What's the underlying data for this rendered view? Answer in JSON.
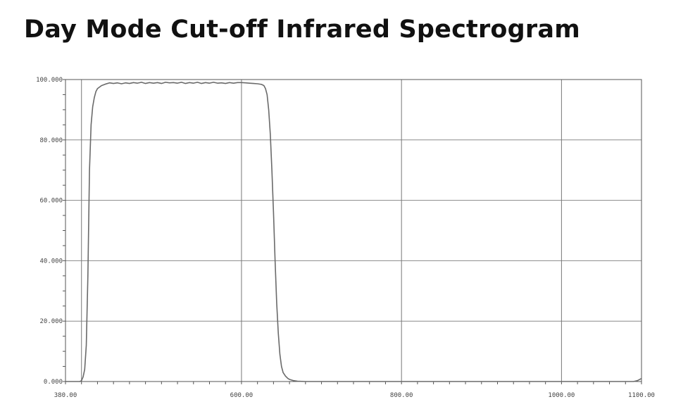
{
  "title": "Day Mode Cut-off Infrared Spectrogram",
  "chart_data": {
    "type": "line",
    "title": "Day Mode Cut-off Infrared Spectrogram",
    "xlabel": "",
    "ylabel": "",
    "xlim": [
      380,
      1100
    ],
    "ylim": [
      0,
      100
    ],
    "grid": true,
    "x_ticks": [
      380,
      600,
      800,
      1000,
      1100
    ],
    "x_tick_labels": [
      "380.00",
      "600.00",
      "800.00",
      "1000.00",
      "1100.00"
    ],
    "y_ticks": [
      0,
      20,
      40,
      60,
      80,
      100
    ],
    "y_tick_labels": [
      "0.000",
      "20.000",
      "40.000",
      "60.000",
      "80.000",
      "100.000"
    ],
    "x_gridlines": [
      400,
      600,
      800,
      1000
    ],
    "series": [
      {
        "x": [
          380,
          398,
          400,
          402,
          404,
          406,
          408,
          410,
          412,
          414,
          416,
          418,
          420,
          425,
          430,
          435,
          440,
          445,
          450,
          455,
          460,
          465,
          470,
          475,
          480,
          485,
          490,
          495,
          500,
          505,
          510,
          515,
          520,
          525,
          530,
          535,
          540,
          545,
          550,
          555,
          560,
          565,
          570,
          575,
          580,
          585,
          590,
          595,
          600,
          605,
          610,
          615,
          620,
          625,
          628,
          630,
          632,
          634,
          636,
          638,
          640,
          642,
          644,
          646,
          648,
          650,
          652,
          655,
          658,
          660,
          665,
          670,
          680,
          690,
          700,
          720,
          750,
          800,
          850,
          900,
          950,
          1000,
          1050,
          1090,
          1095,
          1100
        ],
        "y": [
          0,
          0,
          0.3,
          1.5,
          4,
          12,
          35,
          70,
          85,
          91,
          94,
          96,
          97,
          98,
          98.5,
          98.9,
          98.7,
          98.9,
          98.6,
          98.9,
          98.7,
          99.0,
          98.8,
          99.1,
          98.7,
          99.0,
          98.8,
          99.0,
          98.7,
          99.1,
          98.9,
          99.0,
          98.8,
          99.1,
          98.7,
          99.0,
          98.8,
          99.1,
          98.7,
          99.0,
          98.8,
          99.1,
          98.8,
          98.9,
          98.7,
          99.0,
          98.8,
          99.0,
          99.0,
          98.9,
          98.8,
          98.7,
          98.6,
          98.4,
          98.0,
          97.0,
          95.0,
          90.0,
          82.0,
          70.0,
          56.0,
          40.0,
          26.0,
          16.0,
          9.0,
          5.0,
          3.0,
          1.8,
          1.0,
          0.7,
          0.3,
          0.1,
          0,
          0,
          0,
          0,
          0,
          0,
          0,
          0,
          0,
          0,
          0,
          0,
          0.3,
          1.0
        ]
      }
    ]
  }
}
